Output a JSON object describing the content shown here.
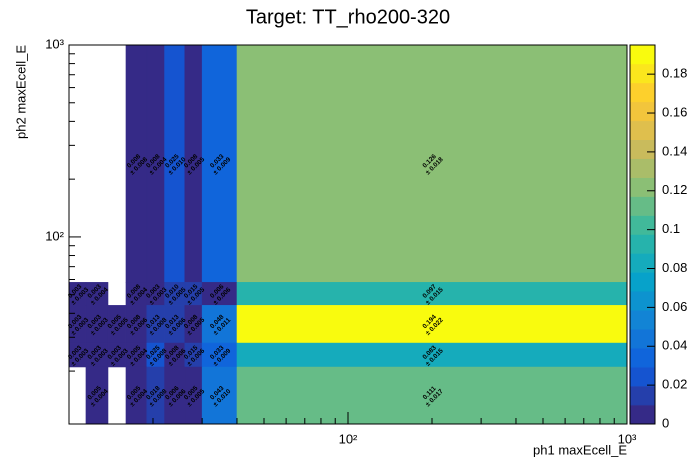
{
  "chart_data": {
    "type": "heatmap",
    "title": "Target: TT_rho200-320",
    "x_label": "ph1 maxEcell_E",
    "y_label": "ph2 maxEcell_E",
    "x_log": true,
    "y_log": true,
    "xlim": [
      10,
      1000
    ],
    "ylim": [
      10.6,
      1000
    ],
    "xticks": [
      {
        "value": 100,
        "label": "10²"
      },
      {
        "value": 1000,
        "label": "10³"
      }
    ],
    "yticks": [
      {
        "value": 100,
        "label": "10²"
      },
      {
        "value": 1000,
        "label": "10³"
      }
    ],
    "xminorticks": [
      20,
      30,
      40,
      50,
      60,
      70,
      80,
      90,
      200,
      300,
      400,
      500,
      600,
      700,
      800,
      900
    ],
    "yminorticks": [
      20,
      30,
      40,
      50,
      60,
      70,
      80,
      90,
      200,
      300,
      400,
      500,
      600,
      700,
      800,
      900
    ],
    "zlim": [
      0,
      0.195
    ],
    "zticks": [
      0,
      0.02,
      0.04,
      0.06,
      0.08,
      0.1,
      0.12,
      0.14,
      0.16,
      0.18
    ],
    "palette": "bird",
    "levels": 20,
    "cells": [
      {
        "x": [
          16,
          19
        ],
        "y": [
          58,
          1000
        ],
        "z": 0.008,
        "z_label": "0.008",
        "err": 0.008,
        "err_label": "± 0.008"
      },
      {
        "x": [
          19,
          22
        ],
        "y": [
          58,
          1000
        ],
        "z": 0.008,
        "z_label": "0.008",
        "err": 0.004,
        "err_label": "± 0.004"
      },
      {
        "x": [
          22,
          26
        ],
        "y": [
          58,
          1000
        ],
        "z": 0.025,
        "z_label": "0.025",
        "err": 0.01,
        "err_label": "± 0.010"
      },
      {
        "x": [
          26,
          30
        ],
        "y": [
          58,
          1000
        ],
        "z": 0.008,
        "z_label": "0.008",
        "err": 0.005,
        "err_label": "± 0.005"
      },
      {
        "x": [
          30,
          40
        ],
        "y": [
          58,
          1000
        ],
        "z": 0.033,
        "z_label": "0.033",
        "err": 0.009,
        "err_label": "± 0.009"
      },
      {
        "x": [
          40,
          1000
        ],
        "y": [
          58,
          1000
        ],
        "z": 0.126,
        "z_label": "0.126",
        "err": 0.018,
        "err_label": "± 0.018"
      },
      {
        "x": [
          10,
          11.5
        ],
        "y": [
          44,
          58
        ],
        "z": 0.003,
        "z_label": "0.003",
        "err": 0.003,
        "err_label": "± 0.003"
      },
      {
        "x": [
          11.5,
          13.8
        ],
        "y": [
          44,
          58
        ],
        "z": 0.003,
        "z_label": "0.003",
        "err": 0.004,
        "err_label": "± 0.004"
      },
      {
        "x": [
          16,
          19
        ],
        "y": [
          44,
          58
        ],
        "z": 0.008,
        "z_label": "0.008",
        "err": 0.004,
        "err_label": "± 0.004"
      },
      {
        "x": [
          19,
          22
        ],
        "y": [
          44,
          58
        ],
        "z": 0.003,
        "z_label": "0.003",
        "err": 0.003,
        "err_label": "± 0.003"
      },
      {
        "x": [
          22,
          26
        ],
        "y": [
          44,
          58
        ],
        "z": 0.01,
        "z_label": "0.010",
        "err": 0.005,
        "err_label": "± 0.005"
      },
      {
        "x": [
          26,
          30
        ],
        "y": [
          44,
          58
        ],
        "z": 0.015,
        "z_label": "0.015",
        "err": 0.005,
        "err_label": "± 0.005"
      },
      {
        "x": [
          30,
          40
        ],
        "y": [
          44,
          58
        ],
        "z": 0.006,
        "z_label": "0.006",
        "err": 0.006,
        "err_label": "± 0.006"
      },
      {
        "x": [
          40,
          1000
        ],
        "y": [
          44,
          58
        ],
        "z": 0.097,
        "z_label": "0.097",
        "err": 0.015,
        "err_label": "± 0.015"
      },
      {
        "x": [
          10,
          11.5
        ],
        "y": [
          28,
          44
        ],
        "z": 0.003,
        "z_label": "0.003",
        "err": 0.003,
        "err_label": "± 0.003"
      },
      {
        "x": [
          11.5,
          13.8
        ],
        "y": [
          28,
          44
        ],
        "z": 0.003,
        "z_label": "0.003",
        "err": 0.003,
        "err_label": "± 0.003"
      },
      {
        "x": [
          13.8,
          16
        ],
        "y": [
          28,
          44
        ],
        "z": 0.005,
        "z_label": "0.005",
        "err": 0.005,
        "err_label": "± 0.005"
      },
      {
        "x": [
          16,
          19
        ],
        "y": [
          28,
          44
        ],
        "z": 0.008,
        "z_label": "0.008",
        "err": 0.006,
        "err_label": "± 0.006"
      },
      {
        "x": [
          19,
          22
        ],
        "y": [
          28,
          44
        ],
        "z": 0.013,
        "z_label": "0.013",
        "err": 0.008,
        "err_label": "± 0.008"
      },
      {
        "x": [
          22,
          26
        ],
        "y": [
          28,
          44
        ],
        "z": 0.013,
        "z_label": "0.013",
        "err": 0.006,
        "err_label": "± 0.006"
      },
      {
        "x": [
          26,
          30
        ],
        "y": [
          28,
          44
        ],
        "z": 0.008,
        "z_label": "0.008",
        "err": 0.005,
        "err_label": "± 0.005"
      },
      {
        "x": [
          30,
          40
        ],
        "y": [
          28,
          44
        ],
        "z": 0.048,
        "z_label": "0.048",
        "err": 0.011,
        "err_label": "± 0.011"
      },
      {
        "x": [
          40,
          1000
        ],
        "y": [
          28,
          44
        ],
        "z": 0.194,
        "z_label": "0.194",
        "err": 0.022,
        "err_label": "± 0.022"
      },
      {
        "x": [
          10,
          11.5
        ],
        "y": [
          21,
          28
        ],
        "z": 0.003,
        "z_label": "0.003",
        "err": 0.003,
        "err_label": "± 0.003"
      },
      {
        "x": [
          11.5,
          13.8
        ],
        "y": [
          21,
          28
        ],
        "z": 0.003,
        "z_label": "0.003",
        "err": 0.003,
        "err_label": "± 0.003"
      },
      {
        "x": [
          13.8,
          16
        ],
        "y": [
          21,
          28
        ],
        "z": 0.003,
        "z_label": "0.003",
        "err": 0.003,
        "err_label": "± 0.003"
      },
      {
        "x": [
          16,
          19
        ],
        "y": [
          21,
          28
        ],
        "z": 0.005,
        "z_label": "0.005",
        "err": 0.004,
        "err_label": "± 0.004"
      },
      {
        "x": [
          19,
          22
        ],
        "y": [
          21,
          28
        ],
        "z": 0.025,
        "z_label": "0.025",
        "err": 0.008,
        "err_label": "± 0.008"
      },
      {
        "x": [
          22,
          26
        ],
        "y": [
          21,
          28
        ],
        "z": 0.008,
        "z_label": "0.008",
        "err": 0.006,
        "err_label": "± 0.006"
      },
      {
        "x": [
          26,
          30
        ],
        "y": [
          21,
          28
        ],
        "z": 0.015,
        "z_label": "0.015",
        "err": 0.006,
        "err_label": "± 0.006"
      },
      {
        "x": [
          30,
          40
        ],
        "y": [
          21,
          28
        ],
        "z": 0.033,
        "z_label": "0.033",
        "err": 0.009,
        "err_label": "± 0.009"
      },
      {
        "x": [
          40,
          1000
        ],
        "y": [
          21,
          28
        ],
        "z": 0.083,
        "z_label": "0.083",
        "err": 0.015,
        "err_label": "± 0.015"
      },
      {
        "x": [
          11.5,
          13.8
        ],
        "y": [
          10.6,
          21
        ],
        "z": 0.005,
        "z_label": "0.005",
        "err": 0.004,
        "err_label": "± 0.004"
      },
      {
        "x": [
          16,
          19
        ],
        "y": [
          10.6,
          21
        ],
        "z": 0.005,
        "z_label": "0.005",
        "err": 0.004,
        "err_label": "± 0.004"
      },
      {
        "x": [
          19,
          22
        ],
        "y": [
          10.6,
          21
        ],
        "z": 0.018,
        "z_label": "0.018",
        "err": 0.008,
        "err_label": "± 0.008"
      },
      {
        "x": [
          22,
          26
        ],
        "y": [
          10.6,
          21
        ],
        "z": 0.006,
        "z_label": "0.006",
        "err": 0.006,
        "err_label": "± 0.006"
      },
      {
        "x": [
          26,
          30
        ],
        "y": [
          10.6,
          21
        ],
        "z": 0.005,
        "z_label": "0.005",
        "err": 0.005,
        "err_label": "± 0.005"
      },
      {
        "x": [
          30,
          40
        ],
        "y": [
          10.6,
          21
        ],
        "z": 0.043,
        "z_label": "0.043",
        "err": 0.01,
        "err_label": "± 0.010"
      },
      {
        "x": [
          40,
          1000
        ],
        "y": [
          10.6,
          21
        ],
        "z": 0.111,
        "z_label": "0.111",
        "err": 0.017,
        "err_label": "± 0.017"
      }
    ]
  }
}
